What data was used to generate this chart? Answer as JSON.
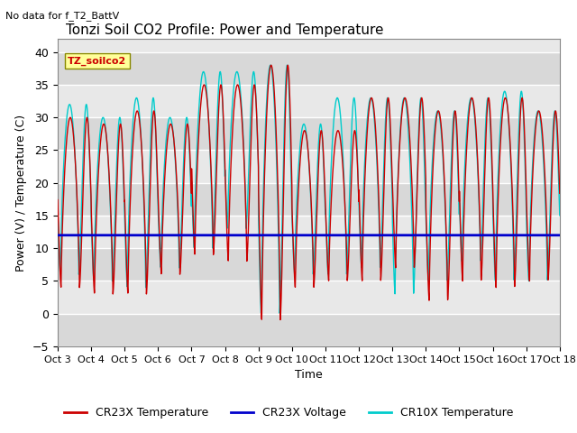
{
  "title": "Tonzi Soil CO2 Profile: Power and Temperature",
  "subtitle": "No data for f_T2_BattV",
  "ylabel": "Power (V) / Temperature (C)",
  "xlabel": "Time",
  "ylim": [
    -5,
    42
  ],
  "yticks": [
    -5,
    0,
    5,
    10,
    15,
    20,
    25,
    30,
    35,
    40
  ],
  "x_tick_labels": [
    "Oct 3",
    "Oct 4",
    "Oct 5",
    "Oct 6",
    "Oct 7",
    "Oct 8",
    "Oct 9",
    "Oct 10",
    "Oct 11",
    "Oct 12",
    "Oct 13",
    "Oct 14",
    "Oct 15",
    "Oct 16",
    "Oct 17",
    "Oct 18"
  ],
  "voltage_value": 12.0,
  "cr23x_color": "#cc0000",
  "cr10x_color": "#00cccc",
  "voltage_color": "#0000cc",
  "legend_entries": [
    "CR23X Temperature",
    "CR23X Voltage",
    "CR10X Temperature"
  ],
  "legend_colors": [
    "#cc0000",
    "#0000cc",
    "#00cccc"
  ],
  "annotation_text": "TZ_soilco2",
  "annotation_color": "#cc0000",
  "annotation_bg": "#ffff99",
  "inner_background": "#f0f0f0",
  "band_colors": [
    "#dcdcdc",
    "#e8e8e8"
  ],
  "title_fontsize": 11,
  "label_fontsize": 9
}
